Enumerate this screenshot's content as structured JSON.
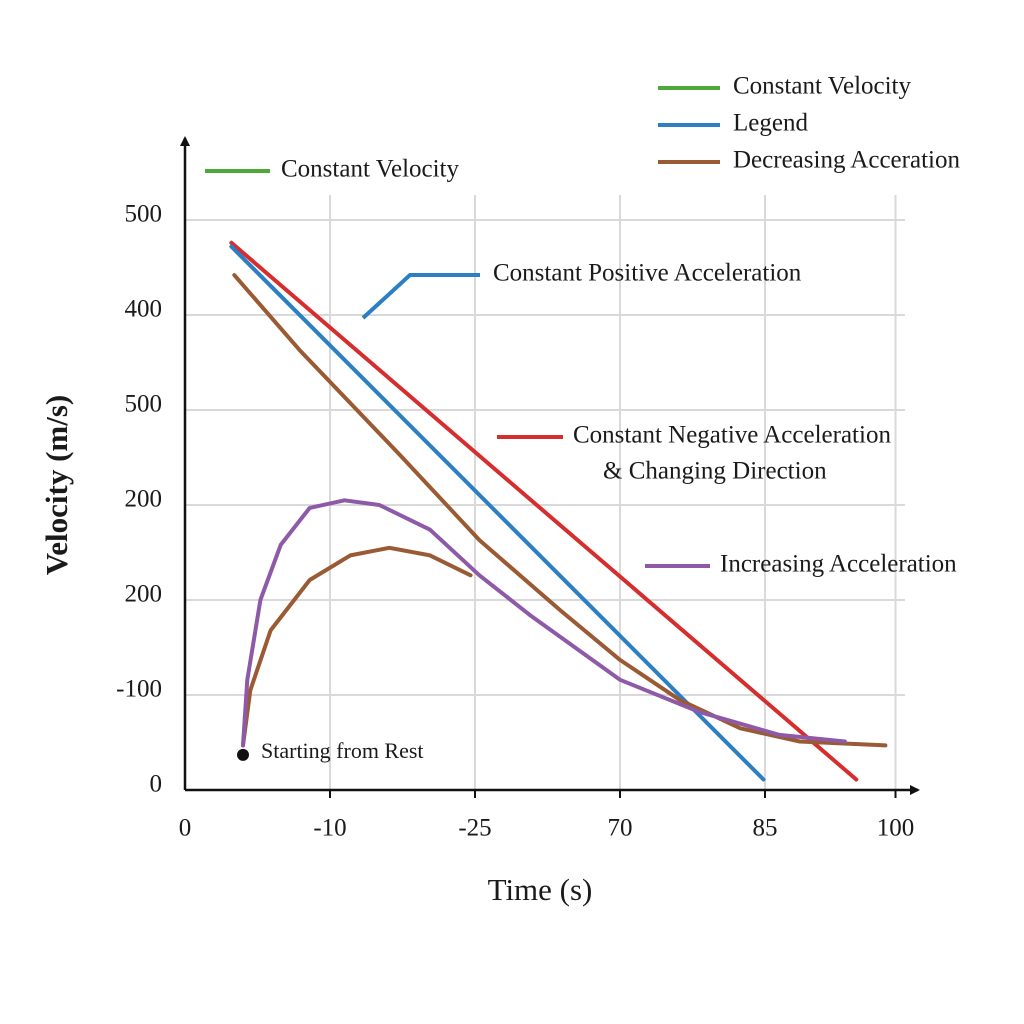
{
  "chart_data": {
    "type": "line",
    "x_label": "Time (s)",
    "y_label": "Velocity (m/s)",
    "xlim": [
      0,
      50
    ],
    "ylim": [
      0,
      680
    ],
    "xticks": [
      0,
      {
        "value": 10,
        "label": "-10"
      },
      {
        "value": 20,
        "label": "-25"
      },
      {
        "value": 30,
        "label": "70"
      },
      {
        "value": 40,
        "label": "85"
      },
      {
        "value": 49,
        "label": "100"
      }
    ],
    "yticks": [
      0,
      {
        "value": 100,
        "label": "-100"
      },
      200,
      {
        "value": 300,
        "label": "200"
      },
      {
        "value": 400,
        "label": "500"
      },
      {
        "value": 500,
        "label": "400"
      },
      {
        "value": 600,
        "label": "500"
      }
    ],
    "grid": true,
    "series": [
      {
        "color": "#d62e2e",
        "x": [
          3.2,
          46.3
        ],
        "values": [
          576,
          11
        ]
      },
      {
        "color": "#2b7fc2",
        "x": [
          3.2,
          39.9
        ],
        "values": [
          572,
          11
        ]
      },
      {
        "color": "#9a5a34",
        "x": [
          3.4,
          7.9,
          14.8,
          20.3,
          25.9,
          30.0,
          34.1,
          38.3,
          42.4,
          48.3
        ],
        "values": [
          542,
          463,
          353,
          263,
          189,
          137,
          95,
          65,
          51,
          47
        ]
      },
      {
        "color": "#9a5a34",
        "x": [
          4.0,
          4.5,
          5.9,
          8.6,
          11.4,
          14.1,
          16.9,
          19.7
        ],
        "values": [
          47,
          105,
          168,
          221,
          247,
          255,
          247,
          226
        ]
      },
      {
        "color": "#8e5aa8",
        "x": [
          4.0,
          4.3,
          5.2,
          6.6,
          8.6,
          11.0,
          13.4,
          16.9,
          20.3,
          23.8,
          30.0,
          35.5,
          41.0,
          45.5
        ],
        "values": [
          47,
          116,
          200,
          258,
          297,
          305,
          300,
          274,
          226,
          184,
          116,
          82,
          58,
          51
        ]
      }
    ],
    "labels": [
      {
        "text": [
          "Constant Velocity"
        ],
        "color": "#4ea83a"
      },
      {
        "text": [
          "Constant Positive Acceleration"
        ],
        "color": "#2b7fc2"
      },
      {
        "text": [
          "Constant Negative Acceleration",
          "& Changing Direction"
        ],
        "color": "#d62e2e"
      },
      {
        "text": [
          "Increasing Acceleration"
        ],
        "color": "#8e5aa8"
      }
    ],
    "legend": [
      {
        "name": "Constant Velocity",
        "color": "#4ea83a"
      },
      {
        "name": "Legend",
        "color": "#2b7fc2"
      },
      {
        "name": "Decreasing Acceration",
        "color": "#9a5a34"
      }
    ],
    "point": {
      "text": "Starting from Rest",
      "x": 4.0,
      "y": 37
    }
  }
}
